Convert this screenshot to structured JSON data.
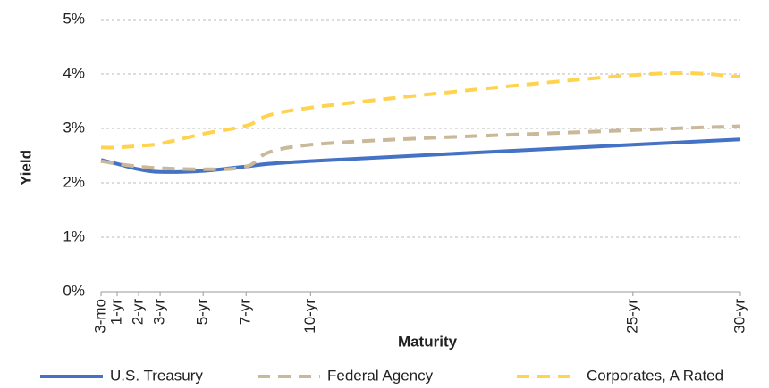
{
  "chart_data": {
    "type": "line",
    "x_label": "Maturity",
    "y_label": "Yield",
    "x": [
      0.25,
      1,
      2,
      3,
      5,
      7,
      10,
      25,
      30
    ],
    "xlim": [
      0.25,
      30
    ],
    "xticks": [
      {
        "value": 0.25,
        "label": "3-mo"
      },
      {
        "value": 1,
        "label": "1-yr"
      },
      {
        "value": 2,
        "label": "2-yr"
      },
      {
        "value": 3,
        "label": "3-yr"
      },
      {
        "value": 5,
        "label": "5-yr"
      },
      {
        "value": 7,
        "label": "7-yr"
      },
      {
        "value": 10,
        "label": "10-yr"
      },
      {
        "value": 25,
        "label": "25-yr"
      },
      {
        "value": 30,
        "label": "30-yr"
      }
    ],
    "ylim": [
      0,
      5
    ],
    "yticks": [
      {
        "value": 0,
        "label": "0%"
      },
      {
        "value": 1,
        "label": "1%"
      },
      {
        "value": 2,
        "label": "2%"
      },
      {
        "value": 3,
        "label": "3%"
      },
      {
        "value": 4,
        "label": "4%"
      },
      {
        "value": 5,
        "label": "5%"
      }
    ],
    "grid": true,
    "legend": "bottom",
    "series": [
      {
        "name": "U.S. Treasury",
        "color": "#4472c4",
        "dash": false,
        "values": [
          2.42,
          2.35,
          2.25,
          2.2,
          2.22,
          2.3,
          2.4,
          2.7,
          2.8
        ]
      },
      {
        "name": "Federal Agency",
        "color": "#c9b99a",
        "dash": true,
        "values": [
          2.4,
          2.35,
          2.3,
          2.27,
          2.25,
          2.3,
          2.7,
          2.97,
          3.04
        ]
      },
      {
        "name": "Corporates, A Rated",
        "color": "#ffd34d",
        "dash": true,
        "values": [
          2.65,
          2.65,
          2.68,
          2.72,
          2.9,
          3.05,
          3.38,
          3.98,
          3.95
        ]
      }
    ]
  }
}
